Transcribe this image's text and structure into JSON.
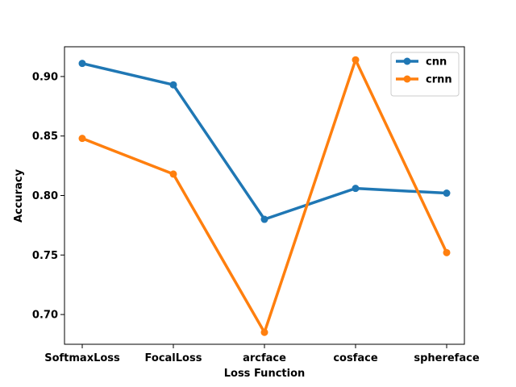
{
  "chart_data": {
    "type": "line",
    "title": "",
    "xlabel": "Loss Function",
    "ylabel": "Accuracy",
    "categories": [
      "SoftmaxLoss",
      "FocalLoss",
      "arcface",
      "cosface",
      "sphereface"
    ],
    "ylim": [
      0.675,
      0.925
    ],
    "yticks": [
      0.7,
      0.75,
      0.8,
      0.85,
      0.9
    ],
    "ytick_labels": [
      "0.70",
      "0.75",
      "0.80",
      "0.85",
      "0.90"
    ],
    "grid": false,
    "legend_position": "top-right",
    "series": [
      {
        "name": "cnn",
        "color": "#1f77b4",
        "values": [
          0.911,
          0.893,
          0.78,
          0.806,
          0.802
        ]
      },
      {
        "name": "crnn",
        "color": "#ff7f0e",
        "values": [
          0.848,
          0.818,
          0.685,
          0.914,
          0.752
        ]
      }
    ]
  }
}
